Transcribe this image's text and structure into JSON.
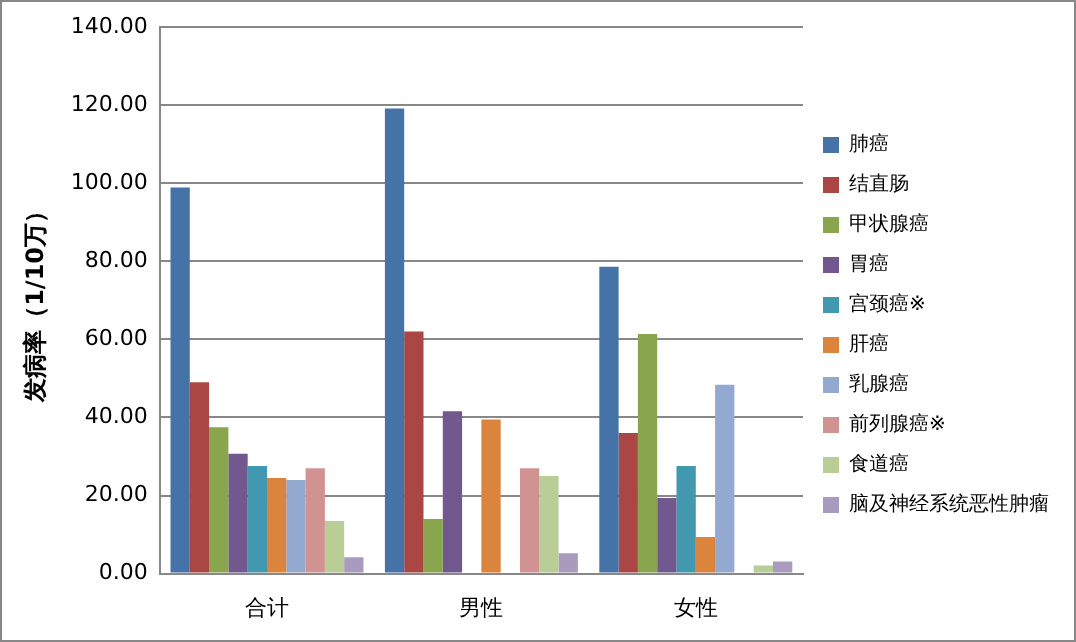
{
  "chart_data": {
    "type": "bar",
    "ylabel": "发病率（1/10万）",
    "categories": [
      "合计",
      "男性",
      "女性"
    ],
    "series": [
      {
        "name": "肺癌",
        "color": "#4572a7",
        "values": [
          98.9,
          119.2,
          78.6
        ]
      },
      {
        "name": "结直肠",
        "color": "#aa4643",
        "values": [
          49,
          62,
          36
        ]
      },
      {
        "name": "甲状腺癌",
        "color": "#89a54e",
        "values": [
          37.5,
          14,
          61.4
        ]
      },
      {
        "name": "胃癌",
        "color": "#71588f",
        "values": [
          30.7,
          41.6,
          19.4
        ]
      },
      {
        "name": "宫颈癌※",
        "color": "#4198af",
        "values": [
          27.6,
          null,
          27.6
        ]
      },
      {
        "name": "肝癌",
        "color": "#db843d",
        "values": [
          24.5,
          39.5,
          9.4
        ]
      },
      {
        "name": "乳腺癌",
        "color": "#93a9cf",
        "values": [
          24,
          null,
          48.4
        ]
      },
      {
        "name": "前列腺癌※",
        "color": "#d19392",
        "values": [
          27,
          27,
          null
        ]
      },
      {
        "name": "食道癌",
        "color": "#b9cd96",
        "values": [
          13.5,
          25,
          2.1
        ]
      },
      {
        "name": "脑及神经系统恶性肿瘤",
        "color": "#a99bbd",
        "values": [
          4.2,
          5.2,
          3.1
        ]
      }
    ],
    "ylim": [
      0,
      140
    ],
    "yticks": [
      {
        "value": 0,
        "label": "0.00"
      },
      {
        "value": 20,
        "label": "20.00"
      },
      {
        "value": 40,
        "label": "40.00"
      },
      {
        "value": 60,
        "label": "60.00"
      },
      {
        "value": 80,
        "label": "80.00"
      },
      {
        "value": 100,
        "label": "100.00"
      },
      {
        "value": 120,
        "label": "120.00"
      },
      {
        "value": 140,
        "label": "140.00"
      }
    ],
    "grid": "y",
    "legend": "right"
  }
}
